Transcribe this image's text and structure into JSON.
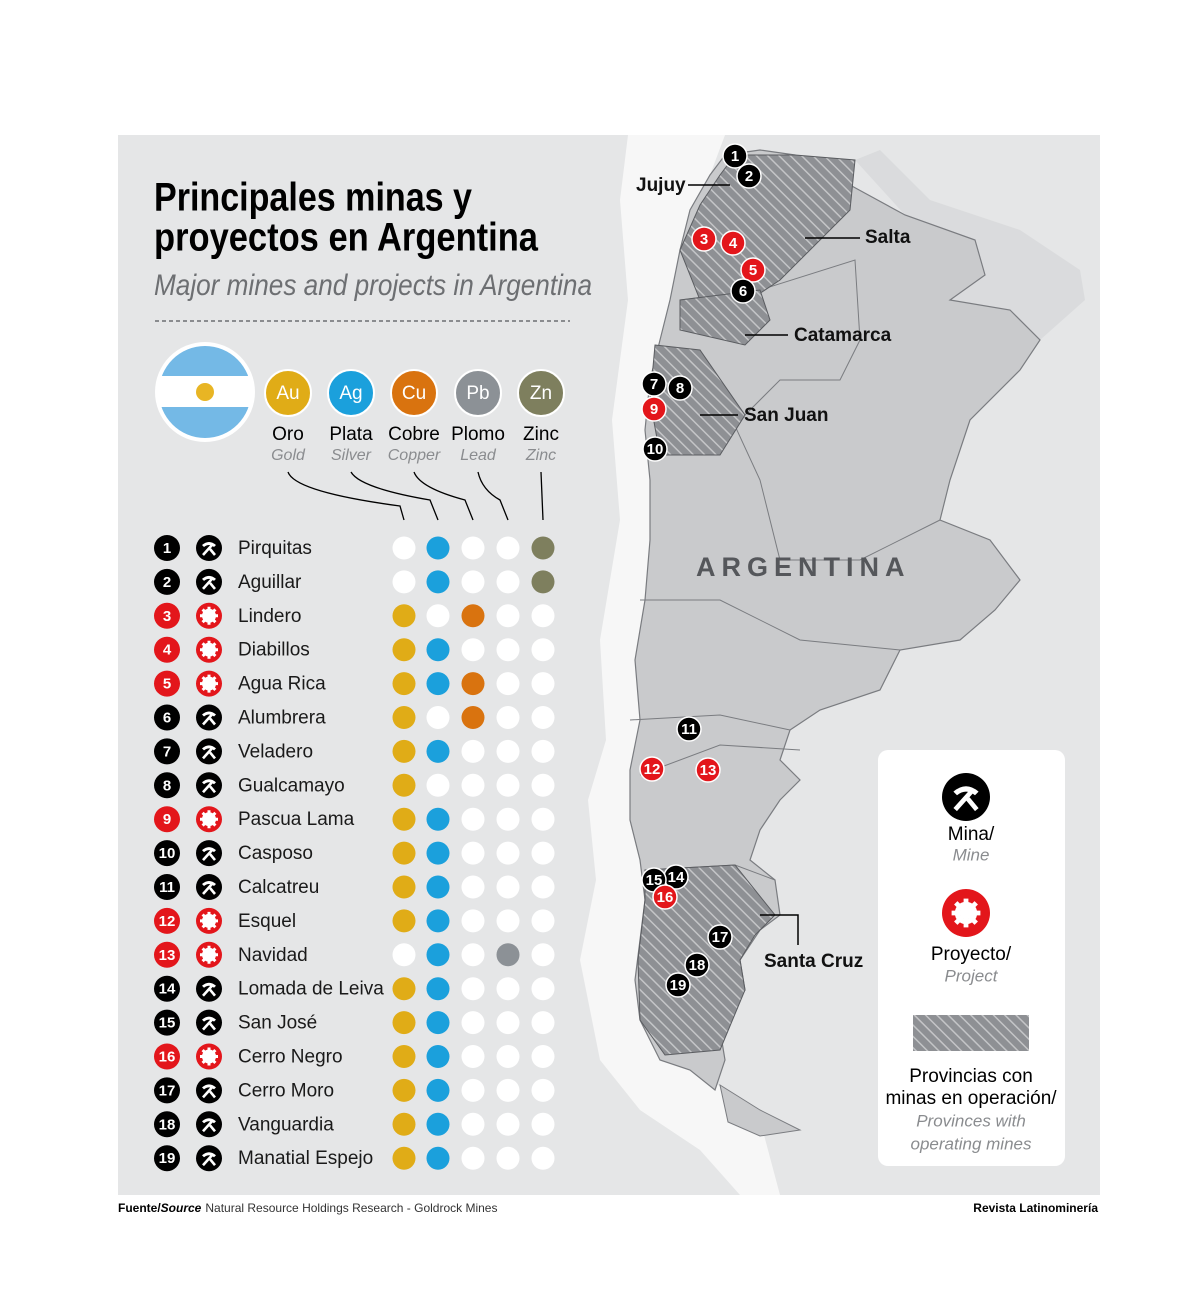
{
  "header": {
    "title_lines": [
      "Principales minas y",
      "proyectos en Argentina"
    ],
    "subtitle": "Major mines and projects in Argentina"
  },
  "metals": [
    {
      "symbol": "Au",
      "name": "Oro",
      "name_en": "Gold",
      "color": "#e0ac17"
    },
    {
      "symbol": "Ag",
      "name": "Plata",
      "name_en": "Silver",
      "color": "#1ba0dc"
    },
    {
      "symbol": "Cu",
      "name": "Cobre",
      "name_en": "Copper",
      "color": "#d9730f"
    },
    {
      "symbol": "Pb",
      "name": "Plomo",
      "name_en": "Lead",
      "color": "#8c9196"
    },
    {
      "symbol": "Zn",
      "name": "Zinc",
      "name_en": "Zinc",
      "color": "#7e7f5e"
    }
  ],
  "mines": [
    {
      "number": 1,
      "name": "Pirquitas",
      "kind": "mine",
      "metals": [
        false,
        true,
        false,
        false,
        true
      ]
    },
    {
      "number": 2,
      "name": "Aguillar",
      "kind": "mine",
      "metals": [
        false,
        true,
        false,
        false,
        true
      ]
    },
    {
      "number": 3,
      "name": "Lindero",
      "kind": "project",
      "metals": [
        true,
        false,
        true,
        false,
        false
      ]
    },
    {
      "number": 4,
      "name": "Diabillos",
      "kind": "project",
      "metals": [
        true,
        true,
        false,
        false,
        false
      ]
    },
    {
      "number": 5,
      "name": "Agua Rica",
      "kind": "project",
      "metals": [
        true,
        true,
        true,
        false,
        false
      ]
    },
    {
      "number": 6,
      "name": "Alumbrera",
      "kind": "mine",
      "metals": [
        true,
        false,
        true,
        false,
        false
      ]
    },
    {
      "number": 7,
      "name": "Veladero",
      "kind": "mine",
      "metals": [
        true,
        true,
        false,
        false,
        false
      ]
    },
    {
      "number": 8,
      "name": "Gualcamayo",
      "kind": "mine",
      "metals": [
        true,
        false,
        false,
        false,
        false
      ]
    },
    {
      "number": 9,
      "name": "Pascua Lama",
      "kind": "project",
      "metals": [
        true,
        true,
        false,
        false,
        false
      ]
    },
    {
      "number": 10,
      "name": "Casposo",
      "kind": "mine",
      "metals": [
        true,
        true,
        false,
        false,
        false
      ]
    },
    {
      "number": 11,
      "name": "Calcatreu",
      "kind": "mine",
      "metals": [
        true,
        true,
        false,
        false,
        false
      ]
    },
    {
      "number": 12,
      "name": "Esquel",
      "kind": "project",
      "metals": [
        true,
        true,
        false,
        false,
        false
      ]
    },
    {
      "number": 13,
      "name": "Navidad",
      "kind": "project",
      "metals": [
        false,
        true,
        false,
        true,
        false
      ]
    },
    {
      "number": 14,
      "name": "Lomada de Leiva",
      "kind": "mine",
      "metals": [
        true,
        true,
        false,
        false,
        false
      ]
    },
    {
      "number": 15,
      "name": "San José",
      "kind": "mine",
      "metals": [
        true,
        true,
        false,
        false,
        false
      ]
    },
    {
      "number": 16,
      "name": "Cerro Negro",
      "kind": "project",
      "metals": [
        true,
        true,
        false,
        false,
        false
      ]
    },
    {
      "number": 17,
      "name": "Cerro Moro",
      "kind": "mine",
      "metals": [
        true,
        true,
        false,
        false,
        false
      ]
    },
    {
      "number": 18,
      "name": "Vanguardia",
      "kind": "mine",
      "metals": [
        true,
        true,
        false,
        false,
        false
      ]
    },
    {
      "number": 19,
      "name": "Manatial Espejo",
      "kind": "mine",
      "metals": [
        true,
        true,
        false,
        false,
        false
      ]
    }
  ],
  "map": {
    "country": "ARGENTINA",
    "provinces": [
      "Jujuy",
      "Salta",
      "Catamarca",
      "San Juan",
      "Santa Cruz"
    ]
  },
  "legend": {
    "mine": "Mina/",
    "mine_en": "Mine",
    "project": "Proyecto/",
    "project_en": "Project",
    "provinces_lines": [
      "Provincias con",
      "minas en operación/"
    ],
    "provinces_en_lines": [
      "Provinces with",
      "operating mines"
    ]
  },
  "footer": {
    "source_label": "Fuente/",
    "source_label_en": "Source",
    "source": "Natural Resource Holdings Research - Goldrock Mines",
    "publisher": "Revista Latinominería"
  }
}
